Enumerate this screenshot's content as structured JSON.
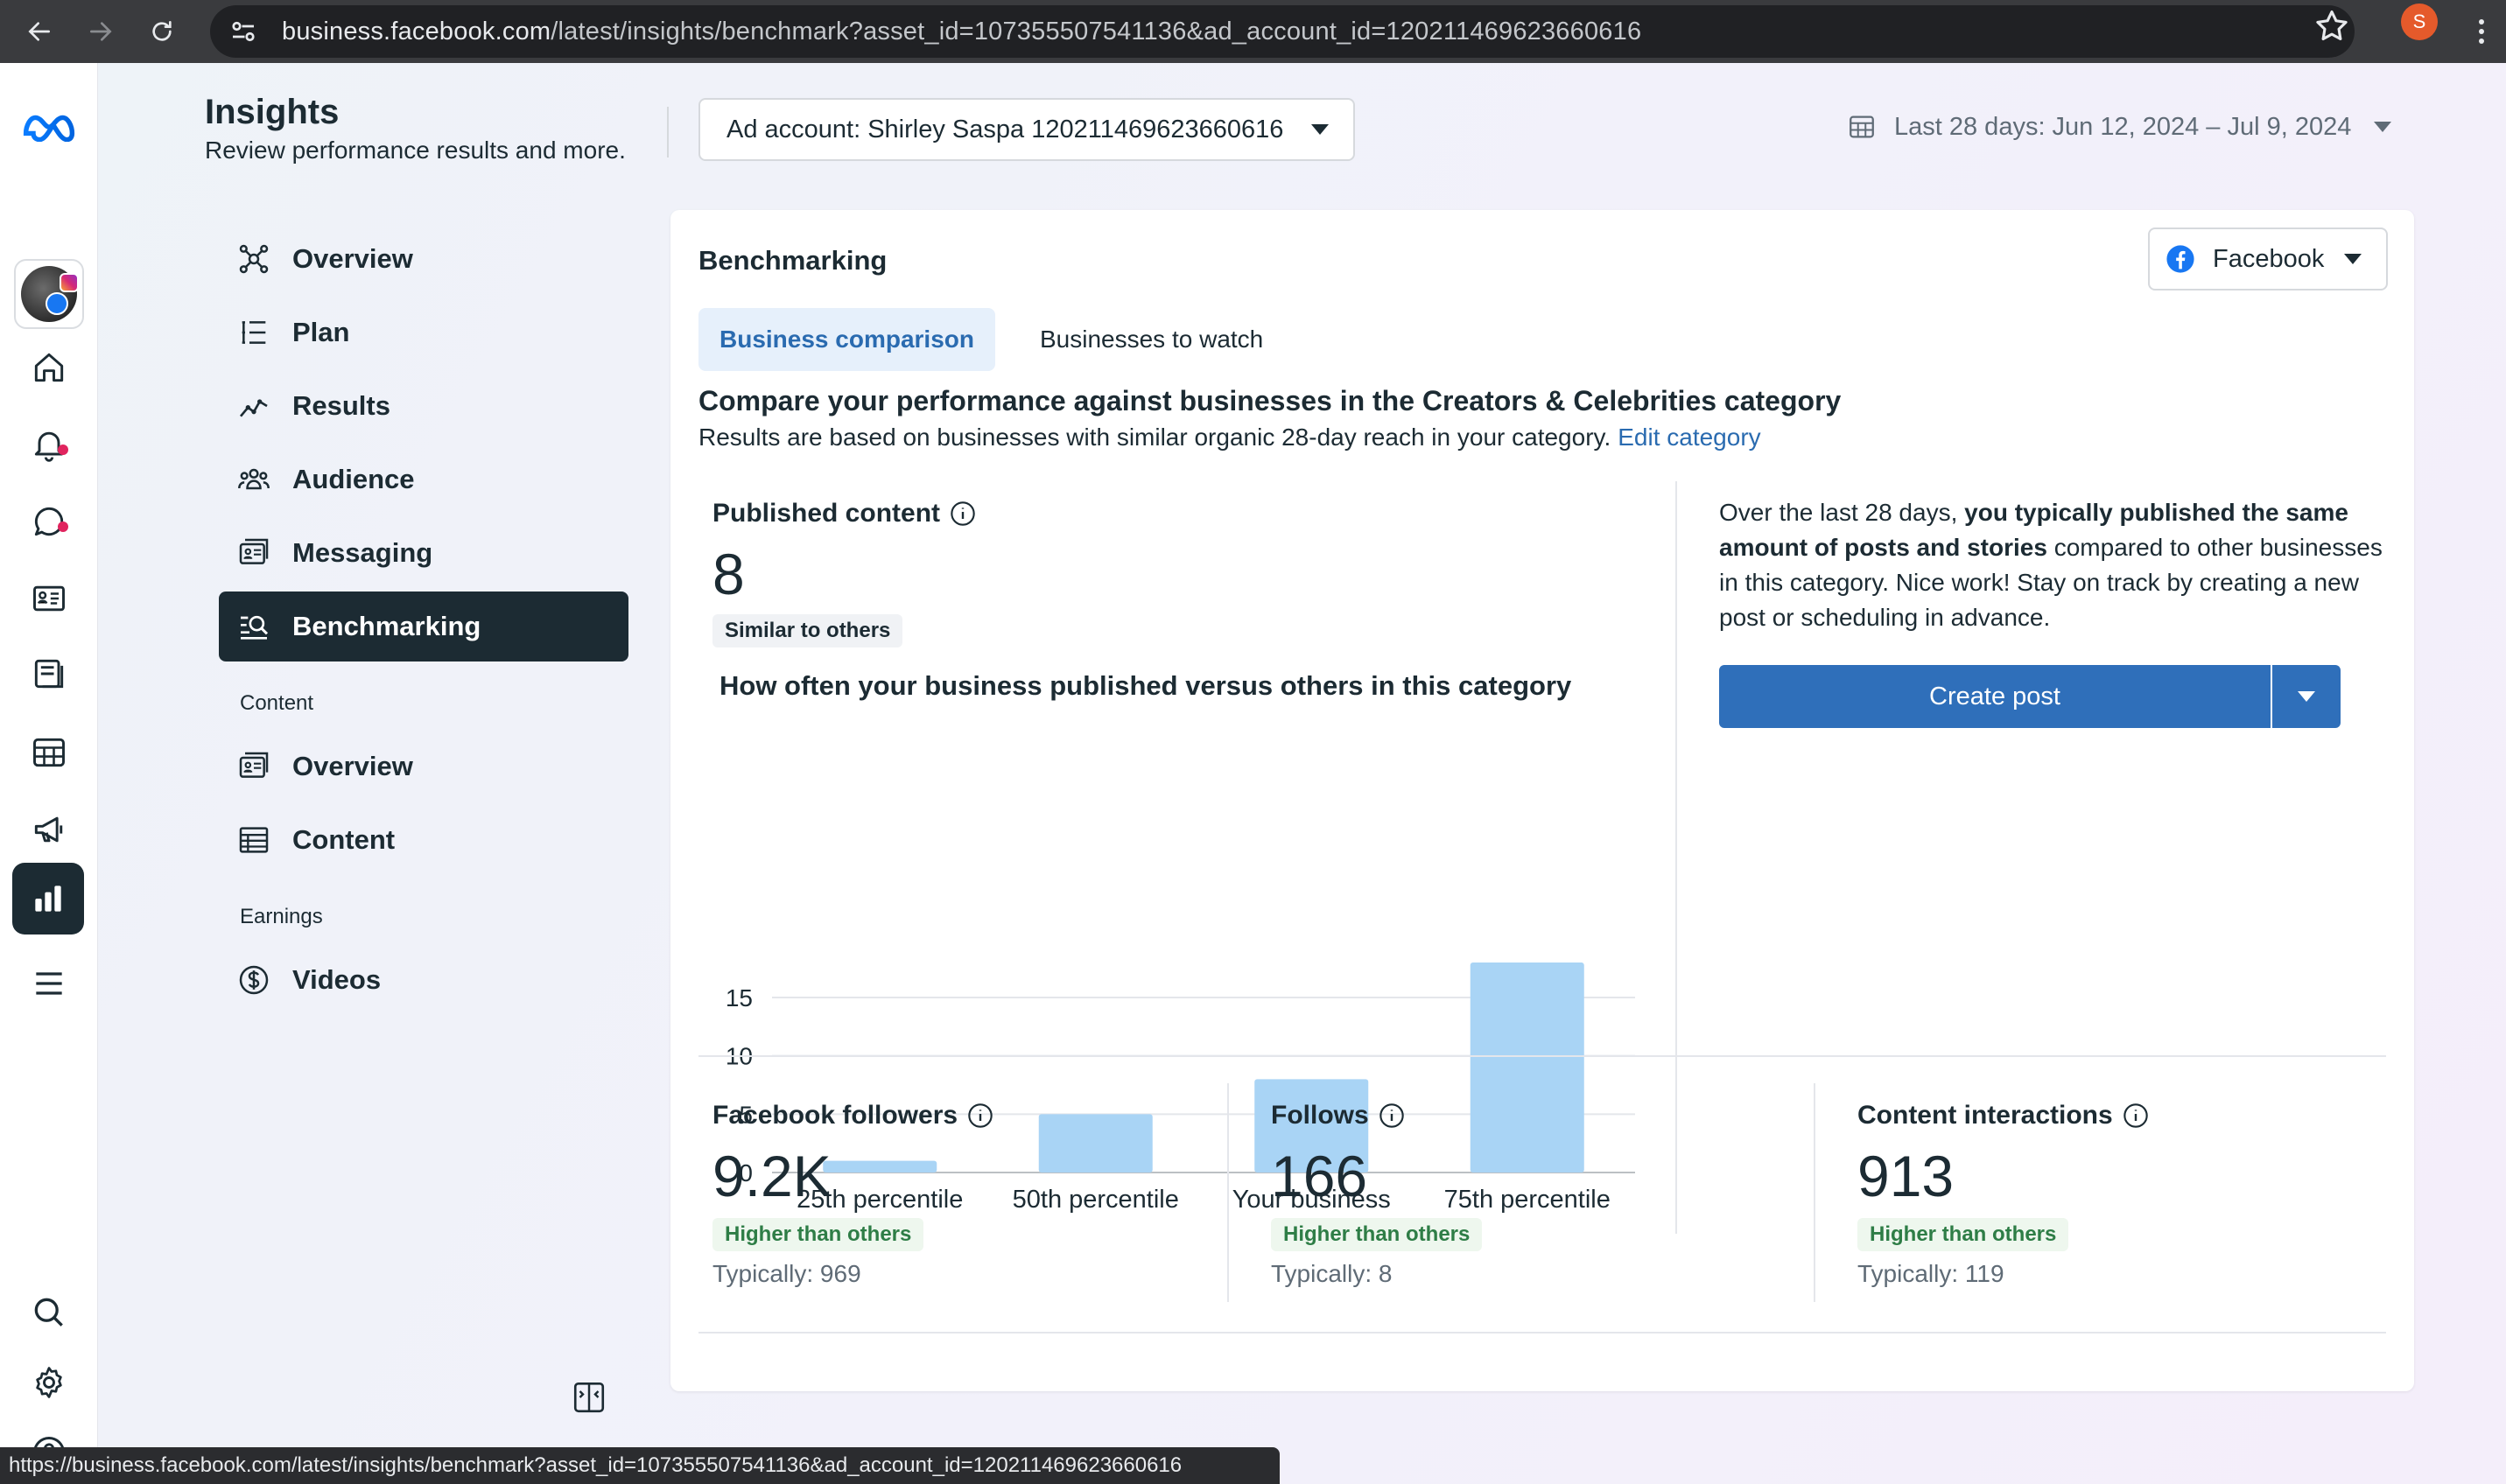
{
  "browser": {
    "url_host": "business.facebook.com",
    "url_path": "/latest/insights/benchmark?asset_id=107355507541136&ad_account_id=120211469623660616",
    "profile_initial": "S",
    "status_url": "https://business.facebook.com/latest/insights/benchmark?asset_id=107355507541136&ad_account_id=120211469623660616"
  },
  "header": {
    "title": "Insights",
    "subtitle": "Review performance results and more.",
    "ad_account": "Ad account: Shirley Saspa 120211469623660616",
    "date_range": "Last 28 days: Jun 12, 2024 – Jul 9, 2024"
  },
  "sidebar": {
    "items": [
      {
        "label": "Overview",
        "icon": "overview-icon"
      },
      {
        "label": "Plan",
        "icon": "plan-icon"
      },
      {
        "label": "Results",
        "icon": "results-icon"
      },
      {
        "label": "Audience",
        "icon": "audience-icon"
      },
      {
        "label": "Messaging",
        "icon": "messaging-icon"
      },
      {
        "label": "Benchmarking",
        "icon": "benchmarking-icon"
      }
    ],
    "content_section": "Content",
    "content_items": [
      {
        "label": "Overview",
        "icon": "content-overview-icon"
      },
      {
        "label": "Content",
        "icon": "content-table-icon"
      }
    ],
    "earnings_section": "Earnings",
    "earnings_items": [
      {
        "label": "Videos",
        "icon": "dollar-icon"
      }
    ]
  },
  "card": {
    "title": "Benchmarking",
    "platform": "Facebook",
    "tabs": [
      "Business comparison",
      "Businesses to watch"
    ],
    "heading": "Compare your performance against businesses in the Creators & Celebrities category",
    "subheading": "Results are based on businesses with similar organic 28-day reach in your category.",
    "edit_link": "Edit category",
    "published": {
      "label": "Published content",
      "value": "8",
      "badge": "Similar to others",
      "chart_title": "How often your business published versus others in this category"
    },
    "insight": {
      "pre": "Over the last 28 days,",
      "bold": "you typically published the same amount of posts and stories",
      "post": "compared to other businesses in this category. Nice work! Stay on track by creating a new post or scheduling in advance."
    },
    "create_post": "Create post",
    "metrics": [
      {
        "label": "Facebook followers",
        "value": "9.2K",
        "badge": "Higher than others",
        "typically": "Typically: 969"
      },
      {
        "label": "Follows",
        "value": "166",
        "badge": "Higher than others",
        "typically": "Typically: 8"
      },
      {
        "label": "Content interactions",
        "value": "913",
        "badge": "Higher than others",
        "typically": "Typically: 119"
      }
    ]
  },
  "colors": {
    "bar": "#a9d4f5",
    "primary_button": "#2f6fba",
    "active_nav": "#1c2b33",
    "positive_badge_text": "#2e7d46"
  },
  "chart_data": {
    "type": "bar",
    "title": "How often your business published versus others in this category",
    "categories": [
      "25th percentile",
      "50th percentile",
      "Your business",
      "75th percentile"
    ],
    "values": [
      1,
      5,
      8,
      18
    ],
    "yticks": [
      0,
      5,
      10,
      15
    ],
    "ylim": [
      0,
      18
    ],
    "xlabel": "",
    "ylabel": "",
    "grid": true
  }
}
